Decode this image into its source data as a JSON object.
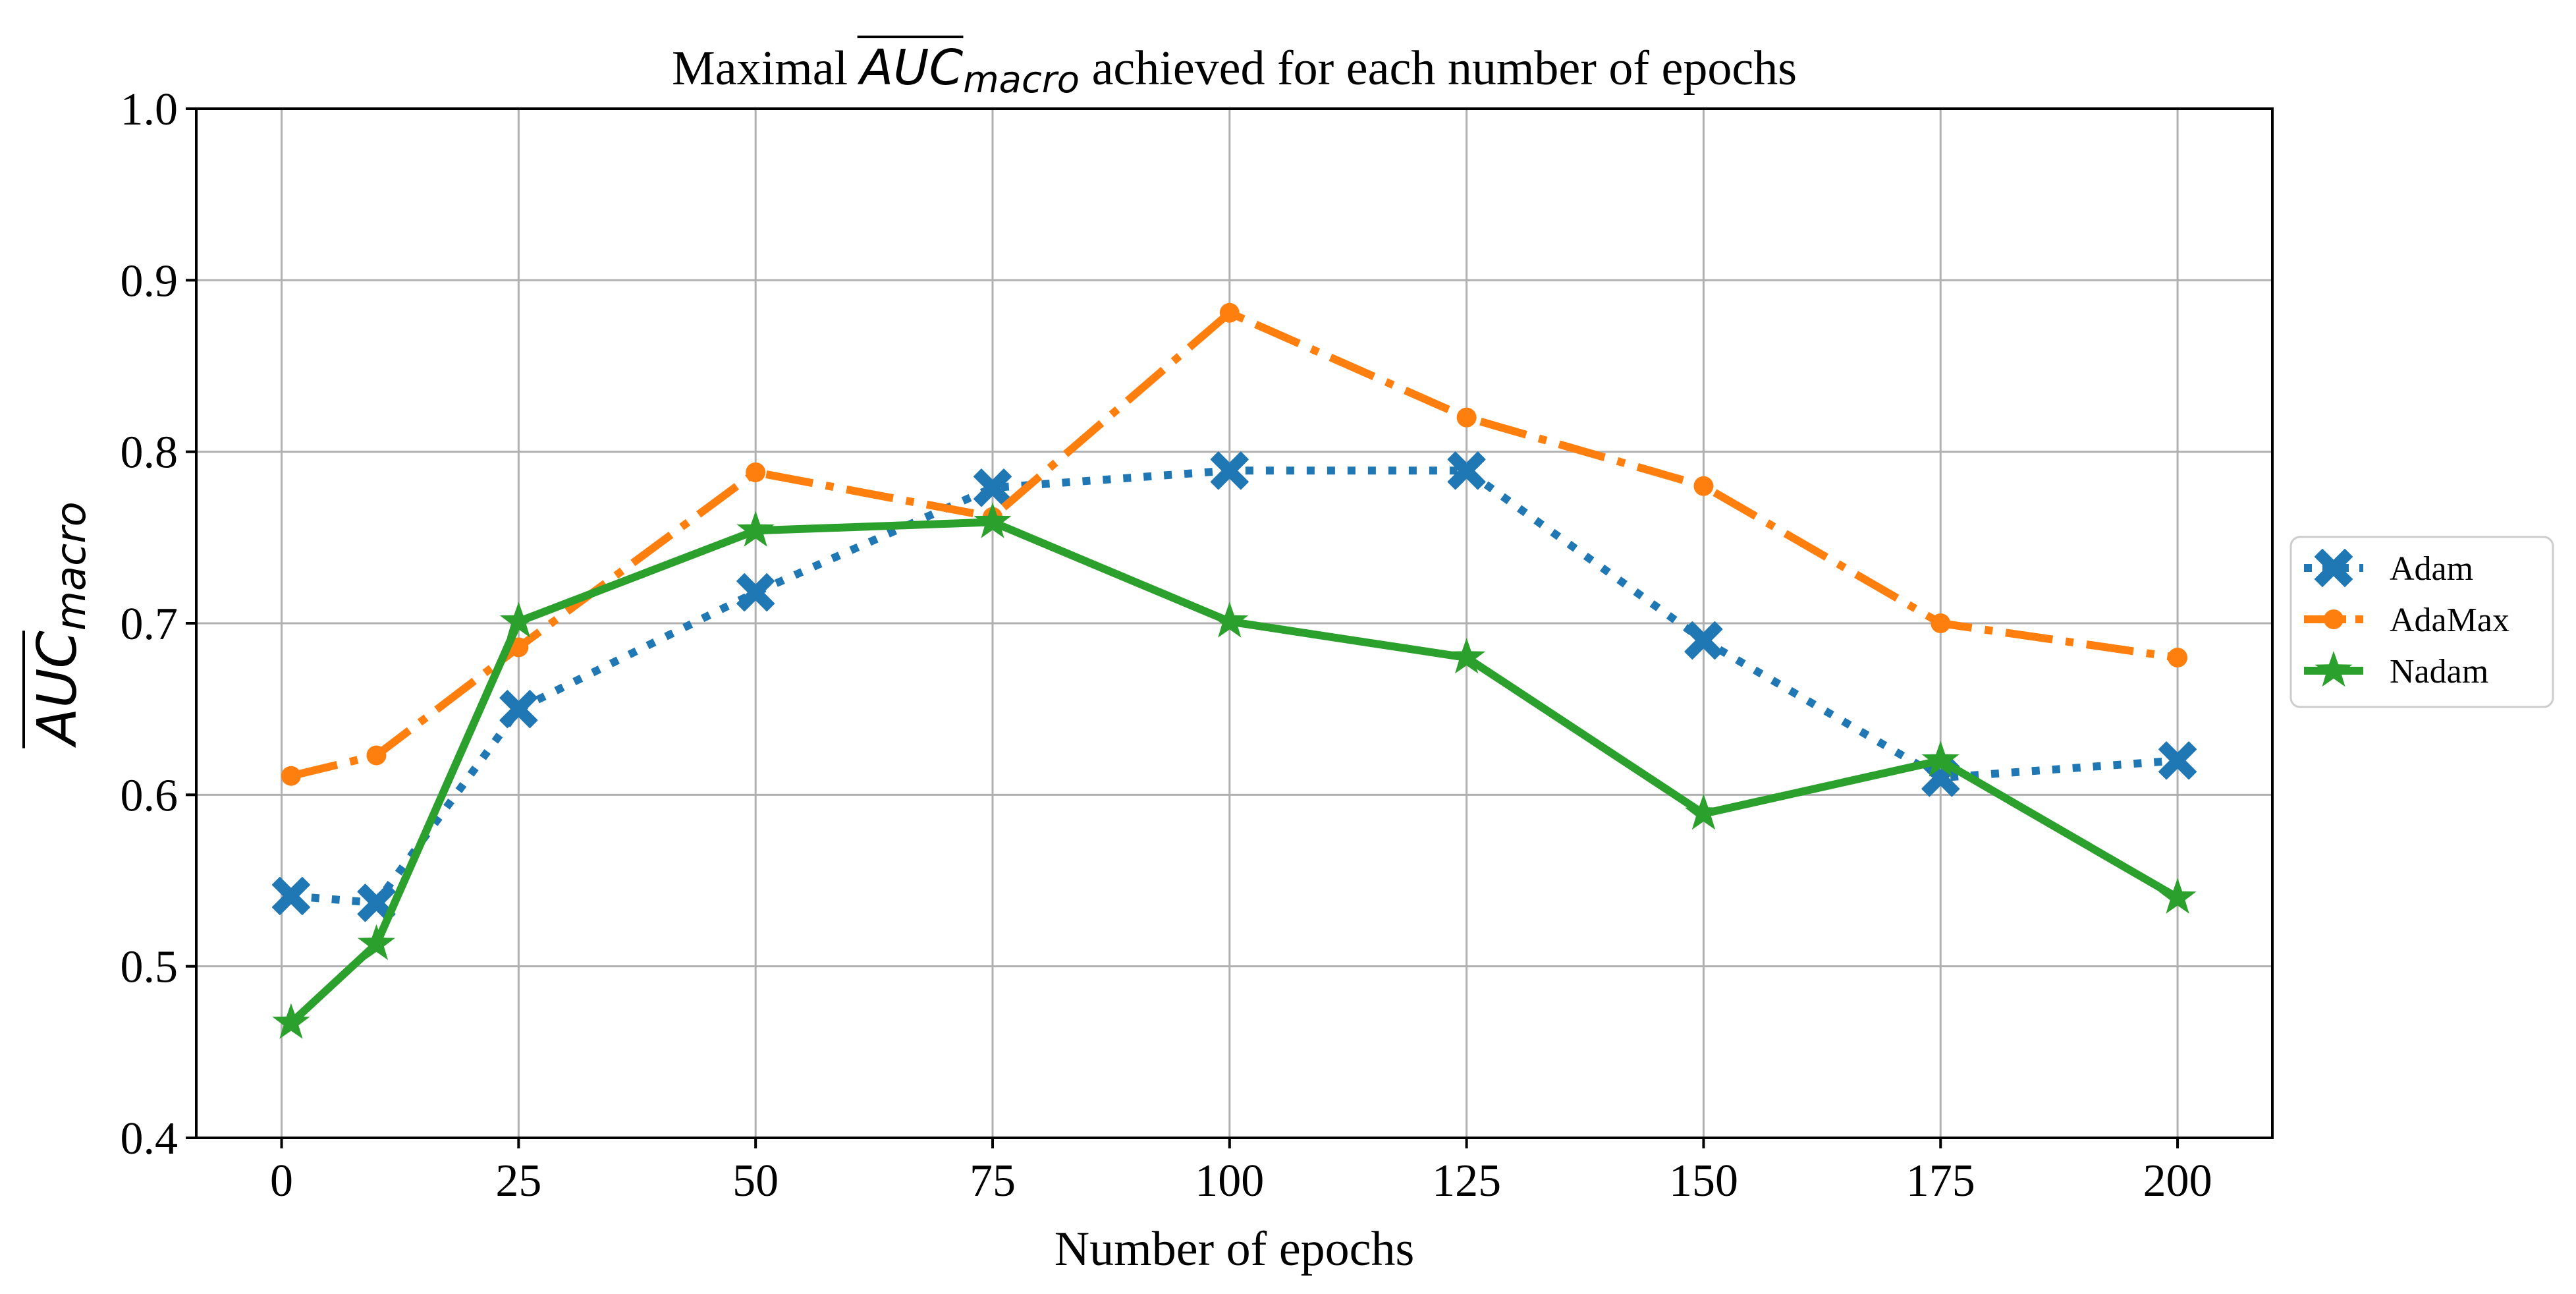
{
  "chart_data": {
    "type": "line",
    "title_prefix": "Maximal ",
    "title_math": "AUC",
    "title_math_sub": "macro",
    "title_suffix": " achieved for each number of epochs",
    "xlabel": "Number of epochs",
    "ylabel_math": "AUC",
    "ylabel_math_sub": "macro",
    "xlim": [
      -9,
      210
    ],
    "ylim": [
      0.4,
      1.0
    ],
    "x_ticks": [
      0,
      25,
      50,
      75,
      100,
      125,
      150,
      175,
      200
    ],
    "x_tick_labels": [
      "0",
      "25",
      "50",
      "75",
      "100",
      "125",
      "150",
      "175",
      "200"
    ],
    "y_ticks": [
      0.4,
      0.5,
      0.6,
      0.7,
      0.8,
      0.9,
      1.0
    ],
    "y_tick_labels": [
      "0.4",
      "0.5",
      "0.6",
      "0.7",
      "0.8",
      "0.9",
      "1.0"
    ],
    "grid": true,
    "legend_position": "right-outside",
    "x": [
      1,
      10,
      25,
      50,
      75,
      100,
      125,
      150,
      175,
      200
    ],
    "series": [
      {
        "name": "Adam",
        "color": "#1f77b4",
        "linestyle": "dotted",
        "marker": "x-filled",
        "values": [
          0.541,
          0.537,
          0.65,
          0.718,
          0.779,
          0.789,
          0.789,
          0.69,
          0.61,
          0.62
        ]
      },
      {
        "name": "AdaMax",
        "color": "#ff7f0e",
        "linestyle": "dashdot",
        "marker": "circle",
        "values": [
          0.611,
          0.623,
          0.686,
          0.788,
          0.762,
          0.881,
          0.82,
          0.78,
          0.7,
          0.68
        ]
      },
      {
        "name": "Nadam",
        "color": "#2ca02c",
        "linestyle": "solid",
        "marker": "star",
        "values": [
          0.467,
          0.513,
          0.701,
          0.754,
          0.759,
          0.701,
          0.68,
          0.589,
          0.62,
          0.54
        ]
      }
    ]
  }
}
